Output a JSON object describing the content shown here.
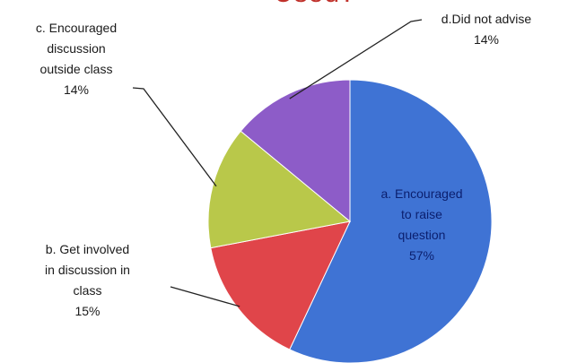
{
  "chart_data": {
    "type": "pie",
    "title": "Used?",
    "slices": [
      {
        "key": "a",
        "label": "a. Encouraged to raise question",
        "label_lines": [
          "a. Encouraged",
          "to raise",
          "question"
        ],
        "percent_text": "57%",
        "value": 57,
        "color": "#3f73d4"
      },
      {
        "key": "b",
        "label": "b. Get involved in discussion in class",
        "label_lines": [
          "b. Get involved",
          "in discussion in",
          "class"
        ],
        "percent_text": "15%",
        "value": 15,
        "color": "#e0454a"
      },
      {
        "key": "c",
        "label": "c. Encouraged discussion outside class",
        "label_lines": [
          "c. Encouraged",
          "discussion",
          "outside class"
        ],
        "percent_text": "14%",
        "value": 14,
        "color": "#b9c84a"
      },
      {
        "key": "d",
        "label": "d. Did not advise",
        "label_lines": [
          "d.Did not advise"
        ],
        "percent_text": "14%",
        "value": 14,
        "color": "#8d5cc8"
      }
    ]
  }
}
